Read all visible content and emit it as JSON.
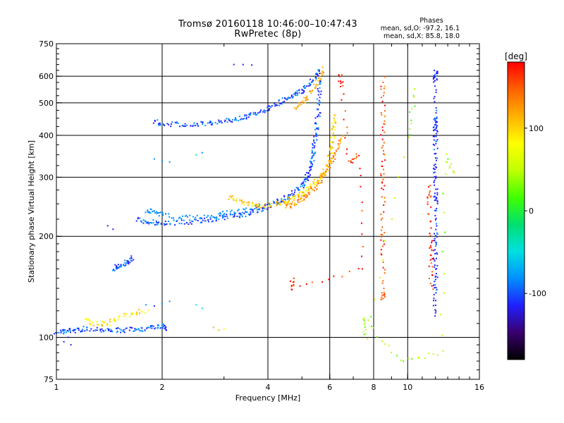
{
  "chart_data": {
    "type": "scatter",
    "title": "Tromsø 20160118 10:46:00–10:47:43",
    "subtitle": "RwPretec (8p)",
    "xlabel": "Frequency [MHz]",
    "ylabel": "Stationary phase Virtual Height [km]",
    "x_scale": "log",
    "y_scale": "log",
    "xlim": [
      1,
      16
    ],
    "ylim": [
      75,
      750
    ],
    "xticks": [
      1,
      2,
      4,
      6,
      8,
      10,
      16
    ],
    "yticks": [
      75,
      100,
      200,
      300,
      400,
      500,
      600,
      750
    ],
    "x_gridlines": [
      2,
      4,
      6,
      8,
      10
    ],
    "y_gridlines": [
      100,
      200,
      300,
      400,
      500,
      600
    ],
    "grid": true,
    "colorbar": {
      "label": "[deg]",
      "range": [
        -180,
        180
      ],
      "ticks": [
        100,
        0,
        -100
      ],
      "colors": [
        "#000000",
        "#3a006e",
        "#2020ff",
        "#0090ff",
        "#00e0e0",
        "#00e070",
        "#40ff00",
        "#c0ff00",
        "#ffff00",
        "#ffb000",
        "#ff6000",
        "#ff0000"
      ]
    },
    "phase_stats": {
      "heading": "Phases",
      "line_o": "mean, sd,O:  -97.2, 16.1",
      "line_x": "mean, sd,X:   85.8, 18.0"
    },
    "traces": [
      {
        "points": [
          [
            1.0,
            104
          ],
          [
            1.05,
            104
          ],
          [
            1.1,
            105
          ],
          [
            1.15,
            105
          ],
          [
            1.2,
            106
          ],
          [
            1.3,
            106
          ],
          [
            1.4,
            105
          ],
          [
            1.5,
            105
          ],
          [
            1.6,
            105
          ],
          [
            1.7,
            106
          ],
          [
            1.8,
            106
          ],
          [
            1.9,
            107
          ],
          [
            2.0,
            108
          ],
          [
            2.05,
            106
          ]
        ],
        "phase": -100
      },
      {
        "points": [
          [
            1.05,
            97
          ],
          [
            1.08,
            100
          ],
          [
            1.1,
            95
          ]
        ],
        "phase": -110
      },
      {
        "points": [
          [
            1.45,
            160
          ],
          [
            1.5,
            163
          ],
          [
            1.55,
            165
          ],
          [
            1.6,
            168
          ],
          [
            1.65,
            172
          ]
        ],
        "phase": -100
      },
      {
        "points": [
          [
            1.4,
            215
          ],
          [
            1.45,
            210
          ]
        ],
        "phase": -100
      },
      {
        "points": [
          [
            1.7,
            225
          ],
          [
            1.8,
            222
          ],
          [
            1.9,
            220
          ],
          [
            2.0,
            218
          ],
          [
            2.2,
            220
          ],
          [
            2.4,
            221
          ],
          [
            2.6,
            223
          ],
          [
            2.8,
            225
          ],
          [
            3.0,
            228
          ],
          [
            3.2,
            230
          ],
          [
            3.4,
            232
          ],
          [
            3.6,
            236
          ],
          [
            3.8,
            241
          ],
          [
            4.0,
            246
          ],
          [
            4.2,
            252
          ],
          [
            4.4,
            258
          ],
          [
            4.6,
            264
          ],
          [
            4.8,
            272
          ],
          [
            5.0,
            282
          ],
          [
            5.1,
            292
          ],
          [
            5.2,
            305
          ],
          [
            5.3,
            320
          ],
          [
            5.35,
            340
          ],
          [
            5.4,
            360
          ],
          [
            5.45,
            390
          ],
          [
            5.5,
            420
          ],
          [
            5.55,
            460
          ],
          [
            5.6,
            510
          ],
          [
            5.6,
            560
          ],
          [
            5.55,
            620
          ]
        ],
        "phase": -100
      },
      {
        "points": [
          [
            1.8,
            240
          ],
          [
            1.9,
            236
          ],
          [
            2.0,
            232
          ],
          [
            2.3,
            228
          ],
          [
            2.6,
            229
          ],
          [
            2.9,
            232
          ],
          [
            3.2,
            236
          ],
          [
            3.5,
            241
          ],
          [
            3.8,
            245
          ]
        ],
        "phase": -80
      },
      {
        "points": [
          [
            1.9,
            440
          ],
          [
            2.0,
            435
          ],
          [
            2.2,
            430
          ],
          [
            2.4,
            432
          ],
          [
            2.6,
            433
          ],
          [
            2.8,
            436
          ],
          [
            3.0,
            440
          ],
          [
            3.2,
            446
          ],
          [
            3.4,
            452
          ],
          [
            3.6,
            460
          ],
          [
            3.8,
            470
          ],
          [
            4.0,
            480
          ],
          [
            4.2,
            492
          ],
          [
            4.4,
            505
          ],
          [
            4.6,
            518
          ],
          [
            4.8,
            530
          ],
          [
            5.0,
            545
          ],
          [
            5.2,
            560
          ],
          [
            5.4,
            585
          ],
          [
            5.6,
            620
          ]
        ],
        "phase": -100
      },
      {
        "points": [
          [
            1.9,
            340
          ],
          [
            2.0,
            335
          ],
          [
            2.1,
            333
          ]
        ],
        "phase": -90
      },
      {
        "points": [
          [
            2.5,
            350
          ],
          [
            2.6,
            355
          ]
        ],
        "phase": -70
      },
      {
        "points": [
          [
            3.2,
            650
          ],
          [
            3.4,
            650
          ],
          [
            3.6,
            648
          ]
        ],
        "phase": -100
      },
      {
        "points": [
          [
            3.1,
            262
          ],
          [
            3.3,
            255
          ],
          [
            3.5,
            250
          ],
          [
            3.7,
            248
          ],
          [
            3.9,
            247
          ],
          [
            4.1,
            248
          ]
        ],
        "phase": 100
      },
      {
        "points": [
          [
            4.2,
            250
          ],
          [
            4.4,
            252
          ],
          [
            4.6,
            256
          ],
          [
            4.8,
            262
          ],
          [
            5.0,
            268
          ],
          [
            5.2,
            276
          ],
          [
            5.4,
            286
          ],
          [
            5.6,
            298
          ],
          [
            5.8,
            312
          ],
          [
            5.95,
            330
          ],
          [
            6.05,
            355
          ],
          [
            6.1,
            385
          ],
          [
            6.15,
            420
          ],
          [
            6.2,
            460
          ]
        ],
        "phase": 100
      },
      {
        "points": [
          [
            4.5,
            245
          ],
          [
            4.7,
            248
          ],
          [
            4.9,
            254
          ],
          [
            5.1,
            262
          ],
          [
            5.3,
            272
          ],
          [
            5.5,
            284
          ],
          [
            5.7,
            298
          ],
          [
            5.9,
            316
          ],
          [
            6.1,
            338
          ],
          [
            6.3,
            362
          ],
          [
            6.5,
            392
          ]
        ],
        "phase": 130
      },
      {
        "points": [
          [
            4.8,
            480
          ],
          [
            5.0,
            500
          ],
          [
            5.2,
            520
          ],
          [
            5.4,
            550
          ],
          [
            5.6,
            590
          ],
          [
            5.8,
            630
          ]
        ],
        "phase": 120
      },
      {
        "points": [
          [
            1.2,
            112
          ],
          [
            1.3,
            110
          ],
          [
            1.4,
            110
          ],
          [
            1.5,
            114
          ],
          [
            1.65,
            118
          ],
          [
            1.8,
            120
          ]
        ],
        "phase": 90
      },
      {
        "points": [
          [
            1.8,
            125
          ],
          [
            1.9,
            124
          ],
          [
            2.0,
            126
          ],
          [
            2.1,
            128
          ]
        ],
        "phase": -90
      },
      {
        "points": [
          [
            2.5,
            125
          ],
          [
            2.6,
            122
          ]
        ],
        "phase": -40
      },
      {
        "points": [
          [
            2.8,
            107
          ],
          [
            2.9,
            105
          ],
          [
            3.0,
            106
          ]
        ],
        "phase": 100
      },
      {
        "points": [
          [
            8.5,
            590
          ],
          [
            8.5,
            480
          ],
          [
            8.5,
            400
          ],
          [
            8.5,
            320
          ],
          [
            8.5,
            280
          ],
          [
            8.5,
            215
          ],
          [
            8.5,
            185
          ],
          [
            8.5,
            135
          ],
          [
            8.5,
            130
          ]
        ],
        "phase": 160
      },
      {
        "points": [
          [
            8.6,
            560
          ],
          [
            8.6,
            455
          ],
          [
            8.6,
            350
          ],
          [
            8.6,
            260
          ]
        ],
        "phase": 110
      },
      {
        "points": [
          [
            12.0,
            630
          ],
          [
            12.0,
            600
          ],
          [
            12.0,
            580
          ],
          [
            12.0,
            450
          ],
          [
            12.0,
            430
          ],
          [
            12.0,
            410
          ],
          [
            12.0,
            380
          ],
          [
            12.0,
            330
          ],
          [
            12.0,
            300
          ],
          [
            12.0,
            265
          ],
          [
            12.0,
            255
          ],
          [
            12.0,
            210
          ],
          [
            12.0,
            190
          ],
          [
            12.0,
            170
          ],
          [
            12.0,
            150
          ],
          [
            12.0,
            135
          ],
          [
            12.0,
            115
          ]
        ],
        "phase": -110
      },
      {
        "points": [
          [
            11.5,
            280
          ],
          [
            11.5,
            250
          ],
          [
            11.6,
            190
          ],
          [
            11.6,
            170
          ],
          [
            11.7,
            140
          ]
        ],
        "phase": 160
      },
      {
        "points": [
          [
            10.5,
            550
          ],
          [
            10.0,
            390
          ],
          [
            7.6,
            100
          ],
          [
            7.5,
            115
          ],
          [
            9.5,
            85
          ],
          [
            12.5,
            90
          ],
          [
            12.8,
            350
          ],
          [
            13.5,
            310
          ]
        ],
        "phase": 40
      },
      {
        "points": [
          [
            6.4,
            610
          ],
          [
            6.5,
            560
          ],
          [
            6.8,
            330
          ],
          [
            7.2,
            350
          ],
          [
            7.5,
            160
          ],
          [
            4.7,
            140
          ],
          [
            4.7,
            150
          ]
        ],
        "phase": 170
      }
    ]
  }
}
